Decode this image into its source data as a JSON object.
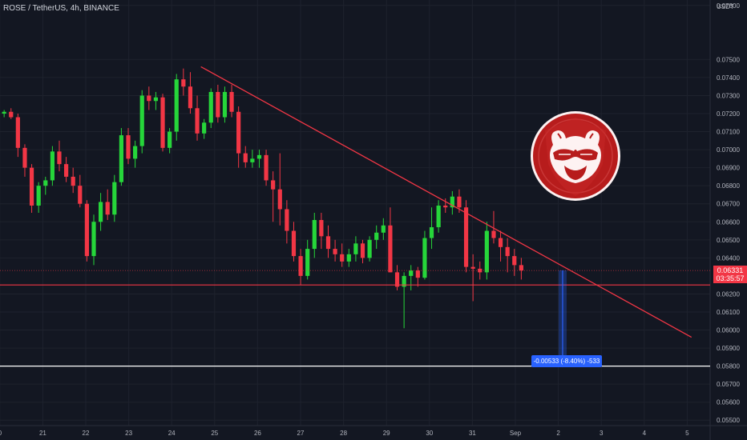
{
  "header": {
    "symbol": "ROSE / TetherUS, 4h, BINANCE"
  },
  "price_tag": {
    "price": "0.06331",
    "countdown": "03:35:57"
  },
  "measure_label": "-0.00533 (-8.40%) -533",
  "colors": {
    "bg": "#131722",
    "grid": "#1e222d",
    "up": "#26d63a",
    "down": "#f23645",
    "trendline": "#f23645",
    "support": "#f23645",
    "target": "#ffffff",
    "measure": "#2962ff",
    "axis_text": "#b2b5be"
  },
  "chart_data": {
    "type": "candlestick",
    "y_axis": {
      "unit": "USDT",
      "min": 0.0547,
      "max": 0.0783,
      "ticks": [
        "0.07800",
        "0.07500",
        "0.07400",
        "0.07300",
        "0.07200",
        "0.07100",
        "0.07000",
        "0.06900",
        "0.06800",
        "0.06700",
        "0.06600",
        "0.06500",
        "0.06400",
        "0.06200",
        "0.06100",
        "0.06000",
        "0.05900",
        "0.05800",
        "0.05700",
        "0.05600",
        "0.05500"
      ]
    },
    "x_axis": {
      "ticks": [
        {
          "label": "0",
          "day": 20
        },
        {
          "label": "21",
          "day": 21
        },
        {
          "label": "22",
          "day": 22
        },
        {
          "label": "23",
          "day": 23
        },
        {
          "label": "24",
          "day": 24
        },
        {
          "label": "25",
          "day": 25
        },
        {
          "label": "26",
          "day": 26
        },
        {
          "label": "27",
          "day": 27
        },
        {
          "label": "28",
          "day": 28
        },
        {
          "label": "29",
          "day": 29
        },
        {
          "label": "30",
          "day": 30
        },
        {
          "label": "31",
          "day": 31
        },
        {
          "label": "Sep",
          "day": 32
        },
        {
          "label": "2",
          "day": 33
        },
        {
          "label": "3",
          "day": 34
        },
        {
          "label": "4",
          "day": 35
        },
        {
          "label": "5",
          "day": 36
        }
      ]
    },
    "candles": [
      [
        0.072,
        0.0722,
        0.0718,
        0.0721
      ],
      [
        0.0721,
        0.0723,
        0.0717,
        0.0718
      ],
      [
        0.0718,
        0.072,
        0.0696,
        0.0701
      ],
      [
        0.0701,
        0.0703,
        0.0685,
        0.069
      ],
      [
        0.069,
        0.0692,
        0.0665,
        0.0669
      ],
      [
        0.0669,
        0.0682,
        0.0665,
        0.068
      ],
      [
        0.068,
        0.0685,
        0.0675,
        0.0683
      ],
      [
        0.0683,
        0.0702,
        0.068,
        0.0699
      ],
      [
        0.0699,
        0.0705,
        0.0688,
        0.0692
      ],
      [
        0.0692,
        0.0696,
        0.0682,
        0.0685
      ],
      [
        0.0685,
        0.069,
        0.0676,
        0.068
      ],
      [
        0.068,
        0.0686,
        0.0668,
        0.067
      ],
      [
        0.067,
        0.0672,
        0.0638,
        0.0641
      ],
      [
        0.0641,
        0.0664,
        0.0636,
        0.066
      ],
      [
        0.066,
        0.0676,
        0.0655,
        0.0671
      ],
      [
        0.0671,
        0.0678,
        0.0661,
        0.0664
      ],
      [
        0.0664,
        0.0686,
        0.066,
        0.0682
      ],
      [
        0.0682,
        0.0712,
        0.068,
        0.0708
      ],
      [
        0.0708,
        0.0712,
        0.0692,
        0.0695
      ],
      [
        0.0695,
        0.0705,
        0.069,
        0.0702
      ],
      [
        0.0702,
        0.0733,
        0.0698,
        0.073
      ],
      [
        0.073,
        0.0735,
        0.0722,
        0.0727
      ],
      [
        0.0727,
        0.0732,
        0.0722,
        0.0729
      ],
      [
        0.0729,
        0.0731,
        0.0699,
        0.0701
      ],
      [
        0.0701,
        0.0712,
        0.0698,
        0.071
      ],
      [
        0.071,
        0.0742,
        0.0705,
        0.0739
      ],
      [
        0.0739,
        0.0745,
        0.073,
        0.0735
      ],
      [
        0.0735,
        0.0743,
        0.072,
        0.0723
      ],
      [
        0.0723,
        0.073,
        0.0705,
        0.0709
      ],
      [
        0.0709,
        0.0717,
        0.0706,
        0.0715
      ],
      [
        0.0715,
        0.0734,
        0.0712,
        0.0732
      ],
      [
        0.0732,
        0.0736,
        0.0715,
        0.0718
      ],
      [
        0.0718,
        0.0735,
        0.0715,
        0.0732
      ],
      [
        0.0732,
        0.0736,
        0.0718,
        0.0721
      ],
      [
        0.0721,
        0.0724,
        0.069,
        0.0698
      ],
      [
        0.0698,
        0.0702,
        0.069,
        0.0693
      ],
      [
        0.0693,
        0.07,
        0.069,
        0.0695
      ],
      [
        0.0695,
        0.07,
        0.069,
        0.0697
      ],
      [
        0.0697,
        0.07,
        0.068,
        0.0683
      ],
      [
        0.0683,
        0.0688,
        0.066,
        0.0678
      ],
      [
        0.0678,
        0.0698,
        0.0658,
        0.0667
      ],
      [
        0.0667,
        0.0672,
        0.0648,
        0.0655
      ],
      [
        0.0655,
        0.066,
        0.0638,
        0.0641
      ],
      [
        0.0641,
        0.0645,
        0.0625,
        0.063
      ],
      [
        0.063,
        0.065,
        0.0628,
        0.0645
      ],
      [
        0.0645,
        0.0665,
        0.064,
        0.0661
      ],
      [
        0.0661,
        0.0665,
        0.0645,
        0.0652
      ],
      [
        0.0652,
        0.0658,
        0.064,
        0.0645
      ],
      [
        0.0645,
        0.065,
        0.0638,
        0.0642
      ],
      [
        0.0642,
        0.0648,
        0.0635,
        0.0638
      ],
      [
        0.0638,
        0.0645,
        0.0635,
        0.0642
      ],
      [
        0.0642,
        0.0652,
        0.0638,
        0.0648
      ],
      [
        0.0648,
        0.065,
        0.0637,
        0.064
      ],
      [
        0.064,
        0.0652,
        0.0638,
        0.065
      ],
      [
        0.065,
        0.0658,
        0.0645,
        0.0654
      ],
      [
        0.0654,
        0.0662,
        0.065,
        0.0658
      ],
      [
        0.0658,
        0.0668,
        0.0632,
        0.0632
      ],
      [
        0.0632,
        0.0636,
        0.0622,
        0.0624
      ],
      [
        0.0624,
        0.0632,
        0.0601,
        0.063
      ],
      [
        0.063,
        0.0636,
        0.0622,
        0.0633
      ],
      [
        0.0633,
        0.0635,
        0.0624,
        0.0629
      ],
      [
        0.0629,
        0.0655,
        0.0628,
        0.0651
      ],
      [
        0.0651,
        0.0668,
        0.0645,
        0.0657
      ],
      [
        0.0657,
        0.0672,
        0.0654,
        0.0669
      ],
      [
        0.0669,
        0.0673,
        0.0665,
        0.0668
      ],
      [
        0.0668,
        0.0677,
        0.0664,
        0.0674
      ],
      [
        0.0674,
        0.0678,
        0.0665,
        0.0668
      ],
      [
        0.0668,
        0.0672,
        0.0632,
        0.0635
      ],
      [
        0.0635,
        0.0642,
        0.0616,
        0.0634
      ],
      [
        0.0634,
        0.0638,
        0.0628,
        0.0632
      ],
      [
        0.0632,
        0.066,
        0.0628,
        0.0655
      ],
      [
        0.0655,
        0.0666,
        0.0648,
        0.0651
      ],
      [
        0.0651,
        0.0655,
        0.0638,
        0.0646
      ],
      [
        0.0646,
        0.0651,
        0.0632,
        0.0641
      ],
      [
        0.0641,
        0.0645,
        0.063,
        0.0636
      ],
      [
        0.0636,
        0.064,
        0.0628,
        0.0633
      ]
    ],
    "candle_start_day": 20.1,
    "candle_step_days": 0.1605,
    "annotations": [
      {
        "type": "trendline",
        "name": "descending-resistance",
        "from": {
          "day": 24.68,
          "price": 0.0746
        },
        "to": {
          "day": 36.1,
          "price": 0.0596
        }
      },
      {
        "type": "horizontal",
        "name": "support",
        "price": 0.0625
      },
      {
        "type": "horizontal",
        "name": "target",
        "price": 0.058
      },
      {
        "type": "horizontal-dotted",
        "name": "last-price",
        "price": 0.0633
      },
      {
        "type": "measure",
        "name": "price-range",
        "day": 33.1,
        "from": 0.06331,
        "to": 0.05798
      }
    ]
  }
}
